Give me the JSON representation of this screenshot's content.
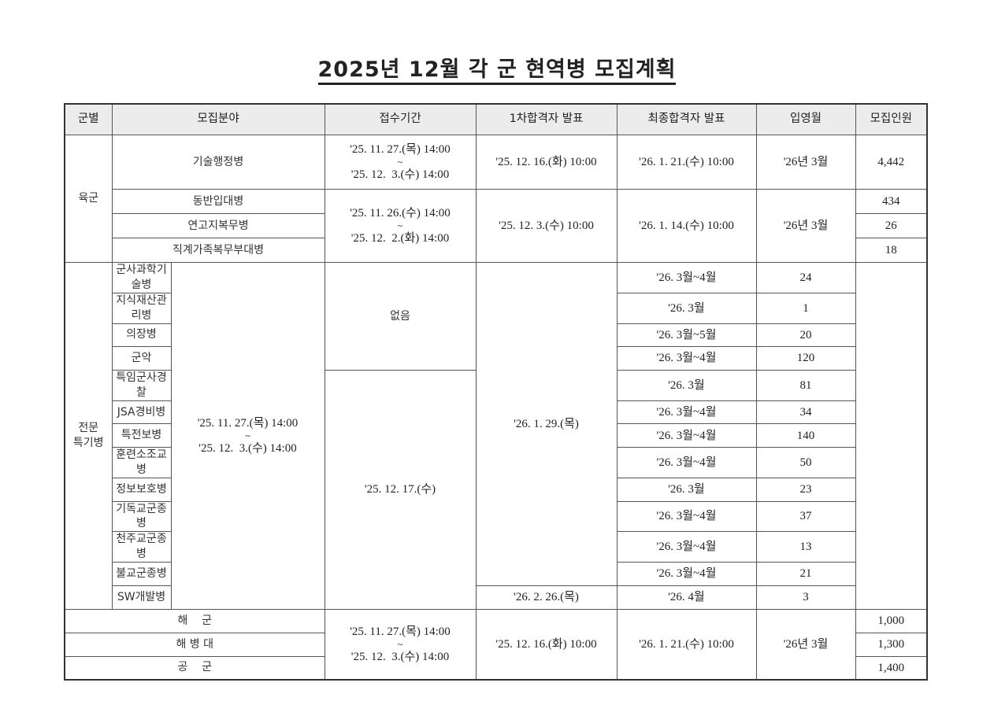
{
  "title": "2025년 12월 각 군 현역병 모집계획",
  "headers": [
    "군별",
    "모집분야",
    "접수기간",
    "1차합격자 발표",
    "최종합격자 발표",
    "입영월",
    "모집인원"
  ],
  "army": {
    "label": "육군",
    "tech": {
      "field": "기술행정병",
      "apply_start": "'25. 11. 27.(목) 14:00",
      "tilde": "~",
      "apply_end": "'25. 12.  3.(수) 14:00",
      "first": "'25. 12. 16.(화) 10:00",
      "final": "'26. 1. 21.(수) 10:00",
      "enlist": "'26년 3월",
      "count": "4,442"
    },
    "group2": {
      "apply_start": "'25. 11. 26.(수) 14:00",
      "tilde": "~",
      "apply_end": "'25. 12.  2.(화) 14:00",
      "first": "'25. 12. 3.(수) 10:00",
      "final": "'26. 1. 14.(수) 10:00",
      "enlist": "'26년 3월",
      "rows": [
        {
          "field": "동반입대병",
          "count": "434"
        },
        {
          "field": "연고지복무병",
          "count": "26"
        },
        {
          "field": "직계가족복무부대병",
          "count": "18"
        }
      ]
    },
    "special": {
      "label_line1": "전문",
      "label_line2": "특기병",
      "apply_start": "'25. 11. 27.(목) 14:00",
      "tilde": "~",
      "apply_end": "'25. 12.  3.(수) 14:00",
      "first_a": "없음",
      "first_b": "'25. 12. 17.(수)",
      "final_a": "'26. 1. 29.(목)",
      "final_b": "'26. 2. 26.(목)",
      "rows": [
        {
          "field": "군사과학기술병",
          "enlist": "'26. 3월~4월",
          "count": "24"
        },
        {
          "field": "지식재산관리병",
          "enlist": "'26. 3월",
          "count": "1"
        },
        {
          "field": "의장병",
          "enlist": "'26. 3월~5월",
          "count": "20"
        },
        {
          "field": "군악",
          "enlist": "'26. 3월~4월",
          "count": "120"
        },
        {
          "field": "특임군사경찰",
          "enlist": "'26. 3월",
          "count": "81"
        },
        {
          "field": "JSA경비병",
          "enlist": "'26. 3월~4월",
          "count": "34"
        },
        {
          "field": "특전보병",
          "enlist": "'26. 3월~4월",
          "count": "140"
        },
        {
          "field": "훈련소조교병",
          "enlist": "'26. 3월~4월",
          "count": "50"
        },
        {
          "field": "정보보호병",
          "enlist": "'26. 3월",
          "count": "23"
        },
        {
          "field": "기독교군종병",
          "enlist": "'26. 3월~4월",
          "count": "37"
        },
        {
          "field": "천주교군종병",
          "enlist": "'26. 3월~4월",
          "count": "13"
        },
        {
          "field": "불교군종병",
          "enlist": "'26. 3월~4월",
          "count": "21"
        },
        {
          "field": "SW개발병",
          "enlist": "'26. 4월",
          "count": "3"
        }
      ]
    }
  },
  "others": {
    "apply_start": "'25. 11. 27.(목) 14:00",
    "tilde": "~",
    "apply_end": "'25. 12.  3.(수) 14:00",
    "first": "'25. 12. 16.(화) 10:00",
    "final": "'26. 1. 21.(수) 10:00",
    "enlist": "'26년 3월",
    "rows": [
      {
        "branch": "해    군",
        "count": "1,000"
      },
      {
        "branch": "해 병 대",
        "count": "1,300"
      },
      {
        "branch": "공    군",
        "count": "1,400"
      }
    ]
  }
}
